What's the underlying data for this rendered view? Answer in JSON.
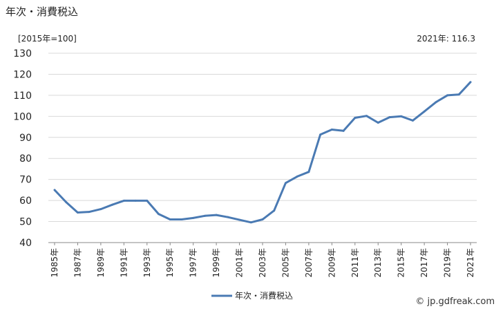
{
  "title": "年次・消費税込",
  "unit_label": "[2015年=100]",
  "latest_label": "2021年: 116.3",
  "watermark": "© jp.gdfreak.com",
  "colors": {
    "line": "#4a7ab3",
    "grid": "#d9d9d9",
    "axis": "#888888"
  },
  "chart_data": {
    "type": "line",
    "title": "年次・消費税込",
    "ylabel": "[2015年=100]",
    "xlabel": "",
    "ylim": [
      40,
      130
    ],
    "yticks": [
      40,
      50,
      60,
      70,
      80,
      90,
      100,
      110,
      120,
      130
    ],
    "grid": true,
    "legend_position": "bottom-center",
    "x": [
      1985,
      1986,
      1987,
      1988,
      1989,
      1990,
      1991,
      1992,
      1993,
      1994,
      1995,
      1996,
      1997,
      1998,
      1999,
      2000,
      2001,
      2002,
      2003,
      2004,
      2005,
      2006,
      2007,
      2008,
      2009,
      2010,
      2011,
      2012,
      2013,
      2014,
      2015,
      2016,
      2017,
      2018,
      2019,
      2020,
      2021
    ],
    "x_tick_labels": [
      "1985年",
      "1987年",
      "1989年",
      "1991年",
      "1993年",
      "1995年",
      "1997年",
      "1999年",
      "2001年",
      "2003年",
      "2005年",
      "2007年",
      "2009年",
      "2011年",
      "2013年",
      "2015年",
      "2017年",
      "2019年",
      "2021年"
    ],
    "series": [
      {
        "name": "年次・消費税込",
        "values": [
          65.0,
          59.2,
          54.3,
          54.6,
          55.9,
          58.0,
          59.9,
          59.9,
          59.9,
          53.6,
          51.0,
          51.0,
          51.7,
          52.7,
          53.1,
          52.1,
          50.8,
          49.6,
          51.0,
          55.2,
          68.3,
          71.4,
          73.6,
          91.3,
          93.7,
          93.1,
          99.3,
          100.2,
          97.0,
          99.6,
          100.0,
          98.0,
          102.3,
          106.7,
          110.0,
          110.4,
          116.3
        ]
      }
    ]
  }
}
